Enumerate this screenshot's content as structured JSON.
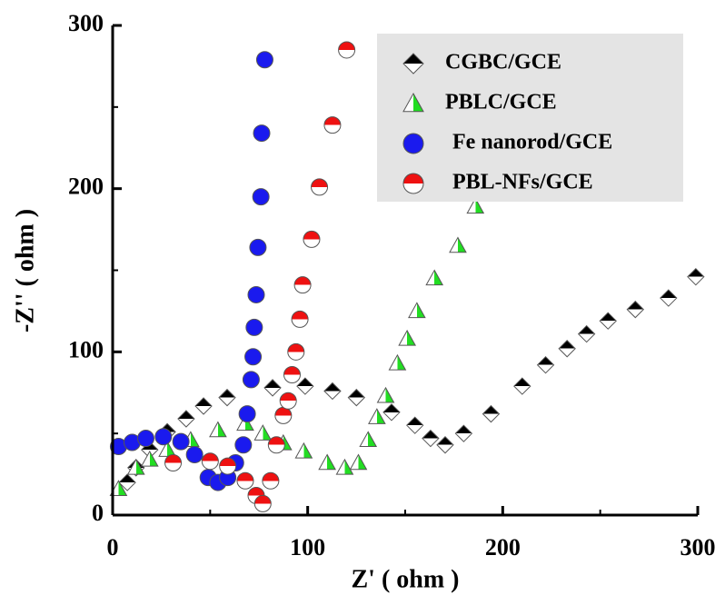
{
  "chart_data": {
    "type": "scatter",
    "x_label": "Z' ( ohm )",
    "y_label": "-Z'' ( ohm )",
    "xlim": [
      0,
      300
    ],
    "ylim": [
      0,
      300
    ],
    "xticks": [
      0,
      100,
      200,
      300
    ],
    "yticks": [
      0,
      100,
      200,
      300
    ],
    "series": [
      {
        "name": "CGBC/GCE",
        "color": "#000000",
        "marker": "diamond",
        "x": [
          7.5,
          12,
          19,
          28,
          37.7,
          46.6,
          58.7,
          82,
          98.7,
          112.7,
          125,
          143,
          155,
          163,
          170.5,
          180,
          194,
          210,
          222,
          233,
          243,
          254,
          268,
          285,
          299
        ],
        "values": [
          20,
          29,
          40,
          51,
          59,
          66.8,
          72,
          78,
          79,
          76,
          72,
          63,
          55,
          47,
          43,
          50,
          62,
          79,
          92,
          102,
          111,
          119,
          126,
          133,
          146
        ]
      },
      {
        "name": "PBLC/GCE",
        "color": "#22dd22",
        "marker": "triangle",
        "x": [
          3,
          12,
          19,
          28,
          40,
          54,
          68,
          77,
          87.5,
          98,
          110,
          119,
          126,
          131,
          135.5,
          140,
          146,
          151,
          156,
          165,
          177,
          186
        ],
        "values": [
          16,
          29,
          34,
          40,
          46,
          52,
          56,
          50,
          44,
          39,
          32,
          29,
          32,
          46,
          60,
          73,
          93,
          108,
          125,
          145,
          165,
          189
        ]
      },
      {
        "name": "Fe nanorod/GCE",
        "color": "#1a1aee",
        "marker": "circle",
        "x": [
          3,
          10,
          17,
          26,
          35,
          42,
          49,
          54,
          59,
          63,
          67,
          69,
          71,
          72,
          72.6,
          73.6,
          74.5,
          76,
          76.4,
          78
        ],
        "values": [
          42,
          44.5,
          47,
          48,
          45,
          37,
          23,
          20,
          23,
          32,
          43,
          62,
          83,
          97,
          115,
          135,
          164,
          195,
          234,
          279
        ]
      },
      {
        "name": "PBL-NFs/GCE",
        "color": "#ee1111",
        "marker": "halfcircle",
        "x": [
          31,
          50,
          59,
          68,
          73.6,
          77,
          81,
          84,
          87.5,
          90,
          92,
          94,
          96,
          97.4,
          102,
          106,
          112.7,
          120
        ],
        "values": [
          32,
          33,
          30,
          21,
          12,
          7,
          21,
          43,
          61,
          70,
          86,
          100,
          120,
          141,
          169,
          201,
          239,
          285
        ]
      }
    ]
  }
}
